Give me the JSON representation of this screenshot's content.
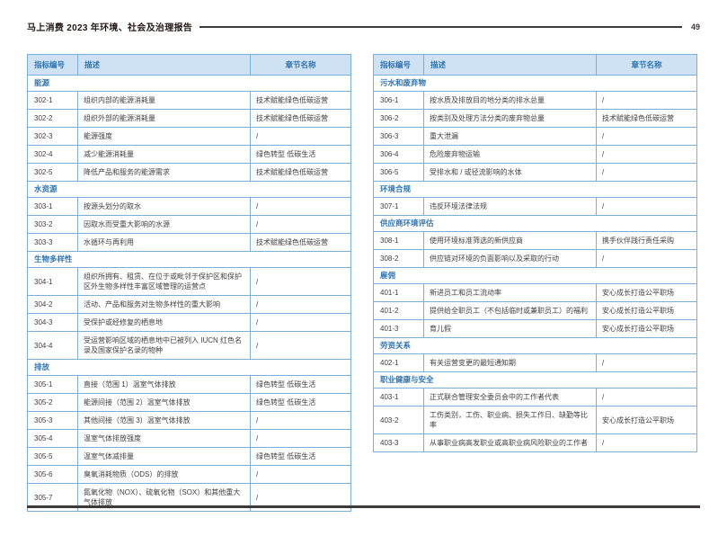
{
  "header": {
    "title": "马上消费 2023 年环境、社会及治理报告",
    "page_number": "49"
  },
  "colors": {
    "table_border": "#7caedc",
    "table_header_bg": "#cfe2f4",
    "table_header_text": "#2e74b5",
    "section_text": "#2e74b5",
    "body_text": "#3f3f3f",
    "rule": "#3e3a39"
  },
  "tables": {
    "columns": [
      "指标编号",
      "描述",
      "章节名称"
    ],
    "left": {
      "rows": [
        {
          "type": "section",
          "label": "能源"
        },
        {
          "type": "row",
          "id": "302-1",
          "desc": "组织内部的能源消耗量",
          "chapter": "技术赋能绿色低碳运营"
        },
        {
          "type": "row",
          "id": "302-2",
          "desc": "组织外部的能源消耗量",
          "chapter": "技术赋能绿色低碳运营"
        },
        {
          "type": "row",
          "id": "302-3",
          "desc": "能源强度",
          "chapter": "/"
        },
        {
          "type": "row",
          "id": "302-4",
          "desc": "减少能源消耗量",
          "chapter": "绿色转型 低碳生活"
        },
        {
          "type": "row",
          "id": "302-5",
          "desc": "降低产品和服务的能源需求",
          "chapter": "技术赋能绿色低碳运营"
        },
        {
          "type": "section",
          "label": "水资源"
        },
        {
          "type": "row",
          "id": "303-1",
          "desc": "按源头划分的取水",
          "chapter": "/"
        },
        {
          "type": "row",
          "id": "303-2",
          "desc": "因取水而受重大影响的水源",
          "chapter": "/"
        },
        {
          "type": "row",
          "id": "303-3",
          "desc": "水循环与再利用",
          "chapter": "技术赋能绿色低碳运营"
        },
        {
          "type": "section",
          "label": "生物多样性"
        },
        {
          "type": "row",
          "id": "304-1",
          "desc": "组织所拥有、租赁、在位于或毗邻于保护区和保护区外生物多样性丰富区域管理的运营点",
          "chapter": "/"
        },
        {
          "type": "row",
          "id": "304-2",
          "desc": "活动、产品和服务对生物多样性的重大影响",
          "chapter": "/"
        },
        {
          "type": "row",
          "id": "304-3",
          "desc": "受保护或经修复的栖息地",
          "chapter": "/"
        },
        {
          "type": "row",
          "id": "304-4",
          "desc": "受运营影响区域的栖息地中已被列入 IUCN 红色名录及国家保护名录的物种",
          "chapter": "/"
        },
        {
          "type": "section",
          "label": "排放"
        },
        {
          "type": "row",
          "id": "305-1",
          "desc": "直接（范围 1）温室气体排放",
          "chapter": "绿色转型 低碳生活"
        },
        {
          "type": "row",
          "id": "305-2",
          "desc": "能源间接（范围 2）温室气体排放",
          "chapter": "绿色转型 低碳生活"
        },
        {
          "type": "row",
          "id": "305-3",
          "desc": "其他间接（范围 3）温室气体排放",
          "chapter": "/"
        },
        {
          "type": "row",
          "id": "305-4",
          "desc": "温室气体排放强度",
          "chapter": "/"
        },
        {
          "type": "row",
          "id": "305-5",
          "desc": "温室气体减排量",
          "chapter": "绿色转型 低碳生活"
        },
        {
          "type": "row",
          "id": "305-6",
          "desc": "臭氧消耗物质（ODS）的排放",
          "chapter": "/"
        },
        {
          "type": "row",
          "id": "305-7",
          "desc": "氮氧化物（NOX）、硫氧化物（SOX）和其他重大气体排放",
          "chapter": "/"
        }
      ]
    },
    "right": {
      "rows": [
        {
          "type": "section",
          "label": "污水和废弃物"
        },
        {
          "type": "row",
          "id": "306-1",
          "desc": "按水质及排放目的地分类的排水总量",
          "chapter": "/"
        },
        {
          "type": "row",
          "id": "306-2",
          "desc": "按类别及处理方法分类的废弃物总量",
          "chapter": "技术赋能绿色低碳运营"
        },
        {
          "type": "row",
          "id": "306-3",
          "desc": "重大泄漏",
          "chapter": "/"
        },
        {
          "type": "row",
          "id": "306-4",
          "desc": "危险废弃物运输",
          "chapter": "/"
        },
        {
          "type": "row",
          "id": "306-5",
          "desc": "受排水和 / 或径流影响的水体",
          "chapter": "/"
        },
        {
          "type": "section",
          "label": "环境合规"
        },
        {
          "type": "row",
          "id": "307-1",
          "desc": "违反环境法律法规",
          "chapter": "/"
        },
        {
          "type": "section",
          "label": "供应商环境评估"
        },
        {
          "type": "row",
          "id": "308-1",
          "desc": "使用环境标准筛选的新供应商",
          "chapter": "携手伙伴践行责任采购"
        },
        {
          "type": "row",
          "id": "308-2",
          "desc": "供应链对环境的负面影响以及采取的行动",
          "chapter": "/"
        },
        {
          "type": "section",
          "label": "雇佣"
        },
        {
          "type": "row",
          "id": "401-1",
          "desc": "新进员工和员工流动率",
          "chapter": "安心成长打造公平职场"
        },
        {
          "type": "row",
          "id": "401-2",
          "desc": "提供给全职员工（不包括临时或兼职员工）的福利",
          "chapter": "安心成长打造公平职场"
        },
        {
          "type": "row",
          "id": "401-3",
          "desc": "育儿假",
          "chapter": "安心成长打造公平职场"
        },
        {
          "type": "section",
          "label": "劳资关系"
        },
        {
          "type": "row",
          "id": "402-1",
          "desc": "有关运营变更的最短通知期",
          "chapter": "/"
        },
        {
          "type": "section",
          "label": "职业健康与安全"
        },
        {
          "type": "row",
          "id": "403-1",
          "desc": "正式联合管理安全委员会中的工作者代表",
          "chapter": "/"
        },
        {
          "type": "row",
          "id": "403-2",
          "desc": "工伤类别，工伤、职业病、损失工作日、缺勤等比率",
          "chapter": "安心成长打造公平职场"
        },
        {
          "type": "row",
          "id": "403-3",
          "desc": "从事职业病高发职业或高职业病风险职业的工作者",
          "chapter": "/"
        }
      ]
    }
  }
}
